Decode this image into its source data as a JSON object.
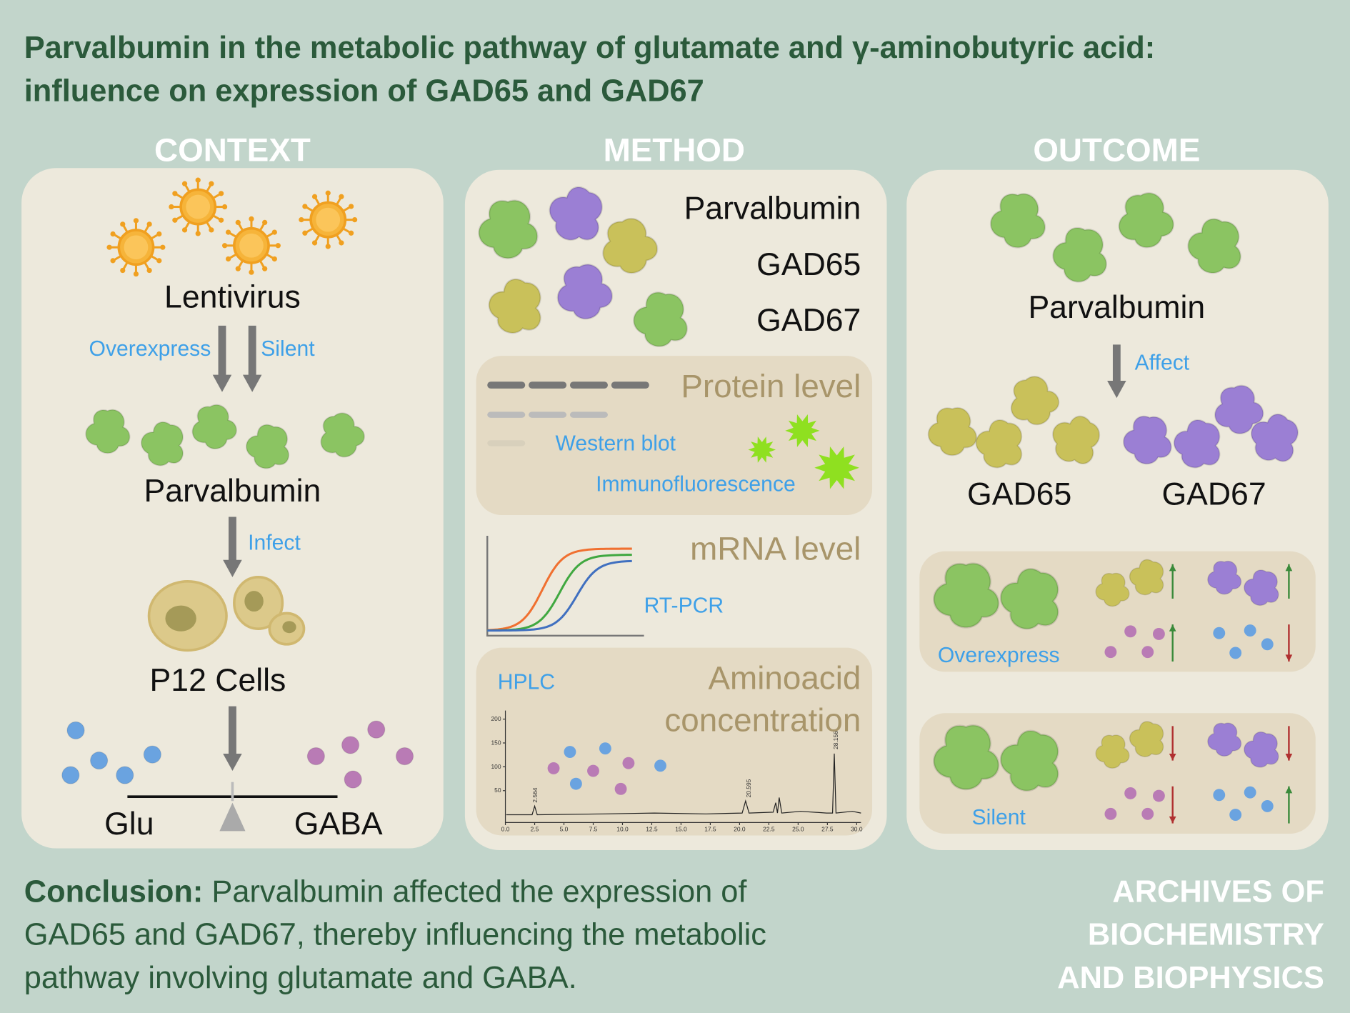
{
  "header": {
    "title_line1": "Parvalbumin in the metabolic pathway of glutamate and γ-aminobutyric acid:",
    "title_line2": "influence on expression of GAD65 and GAD67"
  },
  "panels": {
    "context": {
      "heading": "CONTEXT",
      "lentivirus": "Lentivirus",
      "overexpress": "Overexpress",
      "silent": "Silent",
      "parvalbumin": "Parvalbumin",
      "infect": "Infect",
      "cells": "P12 Cells",
      "glu": "Glu",
      "gaba": "GABA"
    },
    "method": {
      "heading": "METHOD",
      "proteins": [
        "Parvalbumin",
        "GAD65",
        "GAD67"
      ],
      "protein_level": "Protein level",
      "western_blot": "Western blot",
      "immunofluorescence": "Immunofluorescence",
      "mrna_level": "mRNA level",
      "rt_pcr": "RT-PCR",
      "hplc": "HPLC",
      "aminoacid_line1": "Aminoacid",
      "aminoacid_line2": "concentration",
      "chromatogram": {
        "x_labels": [
          "0.0",
          "2.5",
          "5.0",
          "7.5",
          "10.0",
          "12.5",
          "15.0",
          "17.5",
          "20.0",
          "22.5",
          "25.0",
          "27.5",
          "30.0"
        ],
        "y_labels": [
          "50",
          "100",
          "150",
          "200"
        ],
        "peak_labels": [
          "2.564",
          "20.595",
          "28.156"
        ]
      }
    },
    "outcome": {
      "heading": "OUTCOME",
      "parvalbumin": "Parvalbumin",
      "affect": "Affect",
      "gad65": "GAD65",
      "gad67": "GAD67",
      "overexpress": "Overexpress",
      "silent": "Silent"
    }
  },
  "conclusion": {
    "label": "Conclusion:",
    "lines": [
      "Parvalbumin affected the expression of",
      "GAD65 and GAD67, thereby influencing the metabolic",
      "pathway involving glutamate and GABA."
    ]
  },
  "journal": {
    "lines": [
      "ARCHIVES OF",
      "BIOCHEMISTRY",
      "AND BIOPHYSICS"
    ]
  }
}
